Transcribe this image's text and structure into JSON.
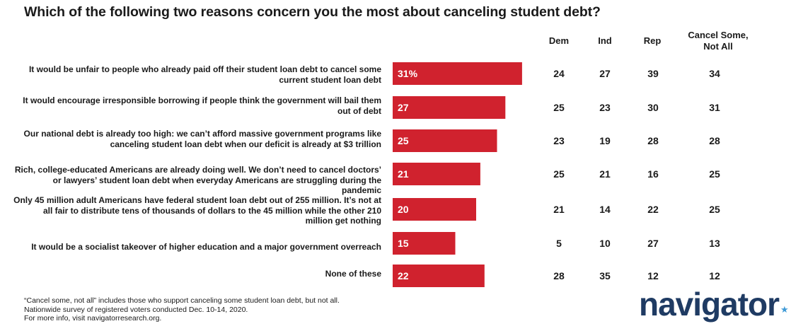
{
  "title": "Which of the following two reasons concern you the most about canceling student debt?",
  "columns": [
    "Dem",
    "Ind",
    "Rep",
    "Cancel Some,\nNot All"
  ],
  "chart_data": {
    "type": "bar",
    "orientation": "horizontal",
    "categories": [
      "It would be unfair to people who already paid off their student loan debt to cancel some current student loan debt",
      "It would encourage irresponsible borrowing if people think the government will bail them out of debt",
      "Our national debt is already too high: we can’t afford massive government programs like canceling student loan debt when our deficit is already at $3 trillion",
      "Rich, college-educated Americans are already doing well. We don’t need to cancel doctors’ or lawyers’ student loan debt when everyday Americans are struggling during the pandemic",
      "Only 45 million adult Americans have federal student loan debt out of 255 million. It’s not at all fair to distribute tens of thousands of dollars to the 45 million while the other 210 million get nothing",
      "It would be a socialist takeover of higher education and a major government overreach",
      "None of these"
    ],
    "values": [
      31,
      27,
      25,
      21,
      20,
      15,
      22
    ],
    "value_labels": [
      "31%",
      "27",
      "25",
      "21",
      "20",
      "15",
      "22"
    ],
    "bar_color": "#d0222e",
    "table": {
      "Dem": [
        24,
        25,
        23,
        25,
        21,
        5,
        28
      ],
      "Ind": [
        27,
        23,
        19,
        21,
        14,
        10,
        35
      ],
      "Rep": [
        39,
        30,
        28,
        16,
        22,
        27,
        12
      ],
      "Cancel Some, Not All": [
        34,
        31,
        28,
        25,
        25,
        13,
        12
      ]
    }
  },
  "footnotes": [
    "“Cancel some, not all” includes those who support canceling some student loan debt, but not all.",
    "Nationwide survey of registered voters conducted Dec. 10-14, 2020.",
    "For more info, visit navigatorresearch.org."
  ],
  "logo": {
    "text": "navigator",
    "star": "★",
    "color": "#1f3b63",
    "star_color": "#3f9ad6"
  }
}
